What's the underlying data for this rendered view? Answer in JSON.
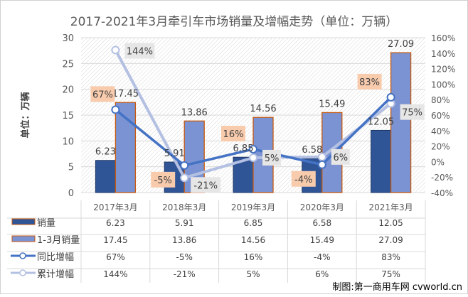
{
  "chart_data": {
    "type": "bar+line",
    "title": "2017-2021年3月牵引车市场销量及增幅走势（单位：万辆）",
    "ylabel": "单位：万辆",
    "ylim": [
      0,
      30
    ],
    "y_ticks": [
      "0",
      "5",
      "10",
      "15",
      "20",
      "25",
      "30"
    ],
    "y2lim": [
      -40,
      160
    ],
    "y2_ticks": [
      "-40%",
      "-20%",
      "0%",
      "20%",
      "40%",
      "60%",
      "80%",
      "100%",
      "120%",
      "140%",
      "160%"
    ],
    "categories": [
      "2017年3月",
      "2018年3月",
      "2019年3月",
      "2020年3月",
      "2021年3月"
    ],
    "series": [
      {
        "name": "销量",
        "type": "bar",
        "axis": "left",
        "values": [
          6.23,
          5.91,
          6.85,
          6.58,
          12.05
        ],
        "labels": [
          "6.23",
          "5.91",
          "6.85",
          "6.58",
          "12.05"
        ],
        "color": "#2f5597"
      },
      {
        "name": "1-3月销量",
        "type": "bar",
        "axis": "left",
        "values": [
          17.45,
          13.86,
          14.56,
          15.49,
          27.09
        ],
        "labels": [
          "17.45",
          "13.86",
          "14.56",
          "15.49",
          "27.09"
        ],
        "color": "#7b93d2",
        "border": "#c55a11"
      },
      {
        "name": "同比增幅",
        "type": "line",
        "axis": "right",
        "values": [
          67,
          -5,
          16,
          -4,
          83
        ],
        "labels": [
          "67%",
          "-5%",
          "16%",
          "-4%",
          "83%"
        ],
        "color": "#4472c4",
        "label_bg": "#f8cbad"
      },
      {
        "name": "累计增幅",
        "type": "line",
        "axis": "right",
        "values": [
          144,
          -21,
          5,
          6,
          75
        ],
        "labels": [
          "144%",
          "-21%",
          "5%",
          "6%",
          "75%"
        ],
        "color": "#b4c0e2",
        "label_bg": "#e7e6e6"
      }
    ],
    "grid": true,
    "legend": "data-table"
  },
  "credit": "制图:第一商用车网 cvworld.cn"
}
